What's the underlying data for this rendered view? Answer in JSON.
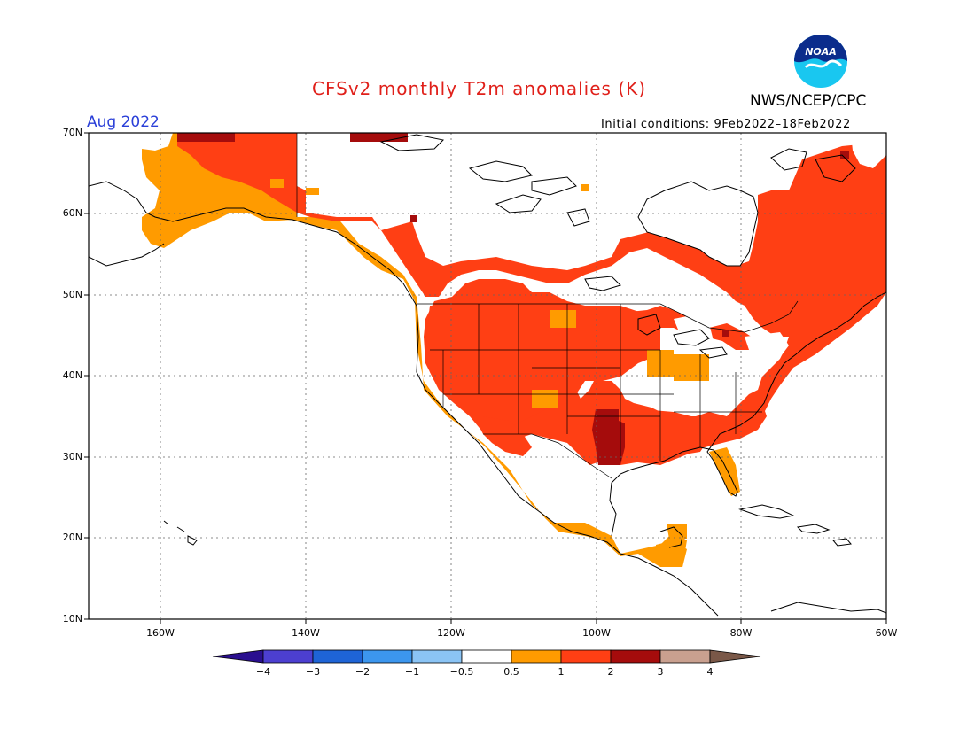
{
  "title": "CFSv2 monthly T2m anomalies (K)",
  "agency": "NWS/NCEP/CPC",
  "valid_month": "Aug 2022",
  "initial_conditions": "Initial conditions: 9Feb2022–18Feb2022",
  "logo": {
    "icon": "noaa-logo-icon",
    "text": "NOAA"
  },
  "lat_labels": [
    "70N",
    "60N",
    "50N",
    "40N",
    "30N",
    "20N",
    "10N"
  ],
  "lon_labels": [
    "160W",
    "140W",
    "120W",
    "100W",
    "80W",
    "60W"
  ],
  "colorbar": {
    "ticks": [
      "−4",
      "−3",
      "−2",
      "−1",
      "−0.5",
      "0.5",
      "1",
      "2",
      "3",
      "4"
    ],
    "colors": [
      "#2a0f8f",
      "#4c3fd0",
      "#1e64d6",
      "#3c96ee",
      "#8bc4f5",
      "#ffffff",
      "#ff9b00",
      "#ff3f14",
      "#a50c0c",
      "#c9a08f",
      "#7a5848"
    ]
  },
  "map": {
    "domain": "North America",
    "colors": {
      "weak_warm": "#ff9b00",
      "warm": "#ff3f14",
      "strong_warm": "#a50c0c",
      "no_anomaly": "#ffffff"
    }
  }
}
